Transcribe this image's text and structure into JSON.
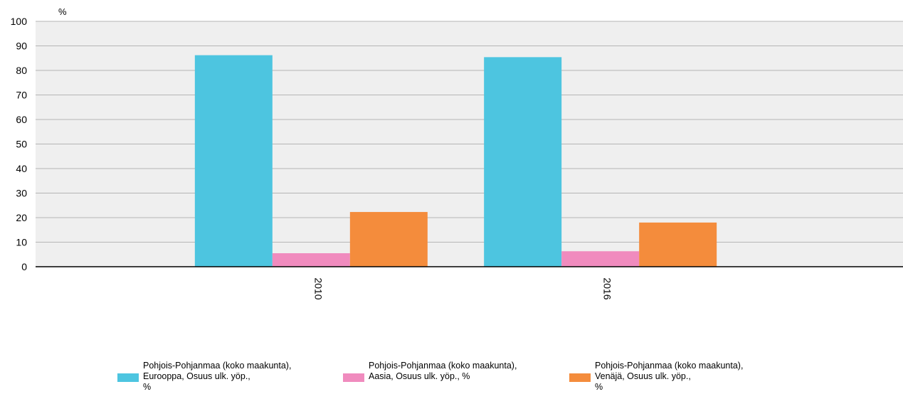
{
  "chart_data": {
    "type": "bar",
    "title": "",
    "ylabel": "%",
    "xlabel": "",
    "ylim": [
      0,
      100
    ],
    "yticks": [
      0,
      10,
      20,
      30,
      40,
      50,
      60,
      70,
      80,
      90,
      100
    ],
    "categories": [
      "2010",
      "2016"
    ],
    "grid": true,
    "legend_position": "bottom",
    "series": [
      {
        "name": "Pohjois-Pohjanmaa (koko maakunta),\nEurooppa, Osuus ulk. yöp.,\n%",
        "color": "#4DC5E0",
        "values": [
          86.2,
          85.4
        ]
      },
      {
        "name": "Pohjois-Pohjanmaa (koko maakunta),\nAasia, Osuus ulk. yöp., %",
        "color": "#F08BBE",
        "values": [
          5.5,
          6.3
        ]
      },
      {
        "name": "Pohjois-Pohjanmaa (koko maakunta),\nVenäjä, Osuus ulk. yöp.,\n%",
        "color": "#F48C3C",
        "values": [
          22.3,
          18.0
        ]
      }
    ]
  }
}
